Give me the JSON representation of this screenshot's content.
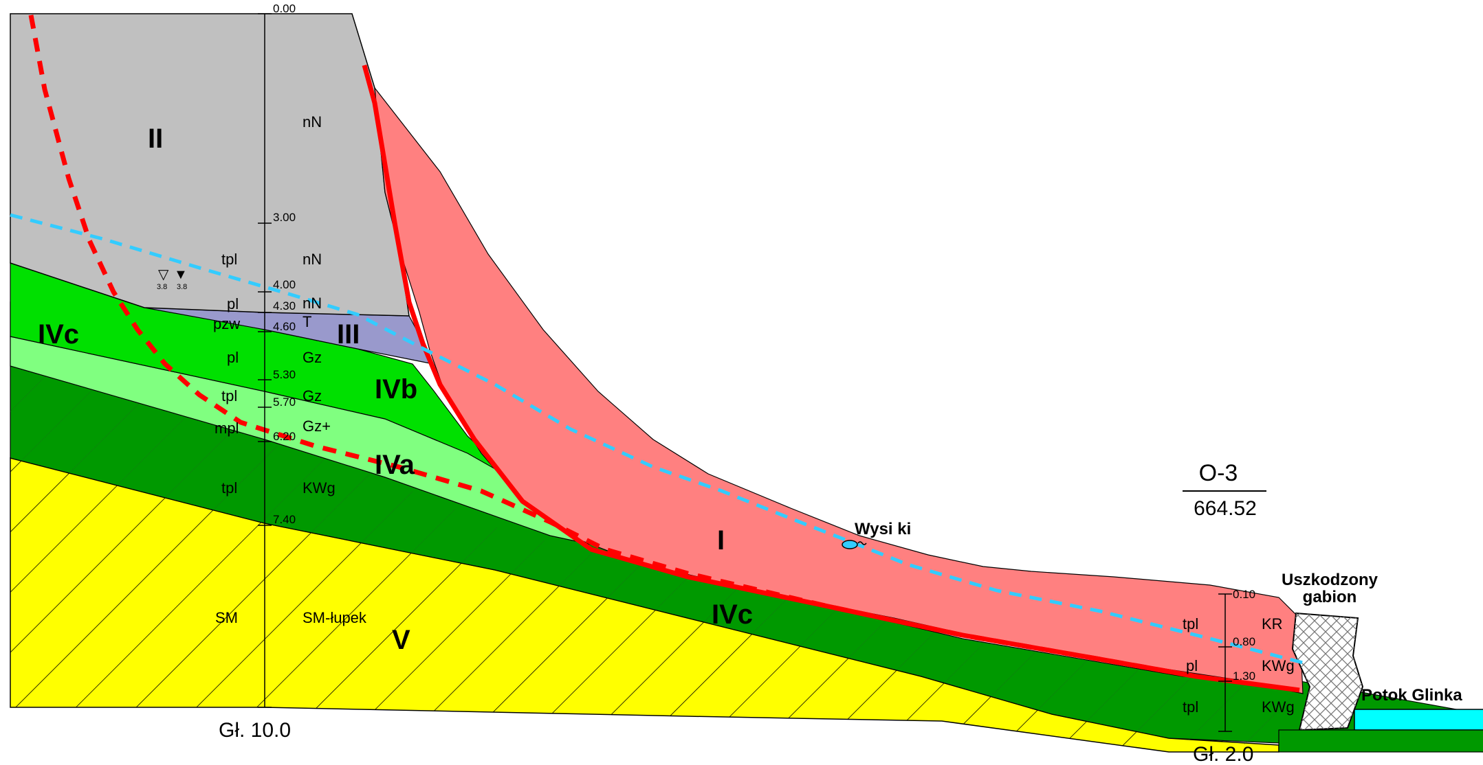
{
  "colors": {
    "zone_II": "#c0c0c0",
    "zone_I": "#ff8080",
    "zone_III": "#9999cc",
    "zone_IVb": "#00e000",
    "zone_IVa": "#80ff80",
    "zone_IVc": "#009900",
    "zone_V": "#ffff00",
    "slip_surface": "#ff0000",
    "water_table": "#33ccff",
    "stream": "#00ffff"
  },
  "zones": {
    "II": "II",
    "I": "I",
    "III": "III",
    "IVb": "IVb",
    "IVa": "IVa",
    "IVc_left": "IVc",
    "IVc_lower": "IVc",
    "V": "V"
  },
  "borehole1": {
    "depths": [
      "0.00",
      "3.00",
      "4.00",
      "4.30",
      "4.60",
      "5.30",
      "5.70",
      "6.20",
      "7.40"
    ],
    "left_labels": [
      "tpl",
      "pl",
      "pzw",
      "pl",
      "tpl",
      "mpl",
      "tpl",
      "SM"
    ],
    "right_labels": [
      "nN",
      "nN",
      "nN",
      "nN",
      "T",
      "Gz",
      "Gz",
      "Gz+",
      "KWg",
      "SM-łupek"
    ],
    "water_symbols": {
      "open": "▽",
      "filled": "▼",
      "open_value": "3.8",
      "filled_value": "3.8"
    },
    "footer": "Gł. 10.0"
  },
  "borehole2": {
    "code": "O-3",
    "elevation": "664.52",
    "depths": [
      "0.10",
      "0.80",
      "1.30"
    ],
    "left_labels": [
      "tpl",
      "pl",
      "tpl"
    ],
    "right_labels": [
      "KR",
      "KWg",
      "KWg"
    ],
    "footer": "Gł. 2.0"
  },
  "annotations": {
    "seepage": "Wysi  ki",
    "gabion_line1": "Uszkodzony",
    "gabion_line2": "gabion",
    "stream": "Potok Glinka"
  }
}
